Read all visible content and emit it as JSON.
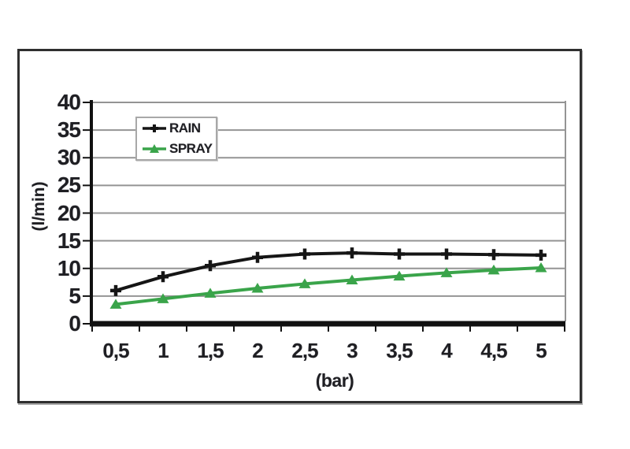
{
  "chart_data": {
    "type": "line",
    "title": "",
    "xlabel": "(bar)",
    "ylabel": "(l/min)",
    "x_values": [
      0.5,
      1,
      1.5,
      2,
      2.5,
      3,
      3.5,
      4,
      4.5,
      5
    ],
    "x_tick_labels": [
      "0,5",
      "1",
      "1,5",
      "2",
      "2,5",
      "3",
      "3,5",
      "4",
      "4,5",
      "5"
    ],
    "y_ticks": [
      0,
      5,
      10,
      15,
      20,
      25,
      30,
      35,
      40
    ],
    "y_tick_labels": [
      "0",
      "5",
      "10",
      "15",
      "20",
      "25",
      "30",
      "35",
      "40"
    ],
    "ylim": [
      0,
      40
    ],
    "grid": true,
    "legend_position": "top-left-inside",
    "series": [
      {
        "name": "RAIN",
        "color": "#151515",
        "marker": "plus",
        "values": [
          6,
          8.5,
          10.5,
          12,
          12.6,
          12.8,
          12.6,
          12.6,
          12.5,
          12.4
        ]
      },
      {
        "name": "SPRAY",
        "color": "#3aa44a",
        "marker": "triangle-up",
        "values": [
          3.5,
          4.5,
          5.5,
          6.4,
          7.2,
          7.9,
          8.6,
          9.2,
          9.7,
          10.1
        ]
      }
    ],
    "colors": {
      "gridline": "#949494",
      "plot_right_border": "#949494",
      "axis": "#111111",
      "text": "#1f1f23",
      "frame_border": "#2f2f2f",
      "legend_border": "#a8a8a8",
      "background": "#ffffff"
    }
  }
}
